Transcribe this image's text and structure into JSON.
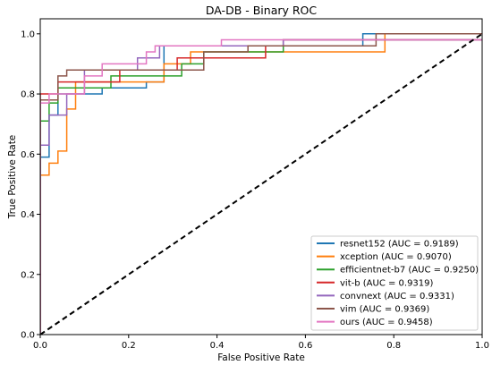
{
  "chart_data": {
    "type": "line",
    "title": "DA-DB - Binary ROC",
    "xlabel": "False Positive Rate",
    "ylabel": "True Positive Rate",
    "xlim": [
      0.0,
      1.0
    ],
    "ylim": [
      0.0,
      1.05
    ],
    "xticks": [
      "0.0",
      "0.2",
      "0.4",
      "0.6",
      "0.8",
      "1.0"
    ],
    "yticks": [
      "0.0",
      "0.2",
      "0.4",
      "0.6",
      "0.8",
      "1.0"
    ],
    "grid": false,
    "legend_position": "lower-right",
    "diagonal": {
      "from": [
        0,
        0
      ],
      "to": [
        1,
        1
      ],
      "color": "#000000",
      "style": "dashed"
    },
    "series": [
      {
        "name": "resnet152 (AUC = 0.9189)",
        "color": "#1f77b4",
        "x": [
          0,
          0,
          0.02,
          0.02,
          0.04,
          0.04,
          0.14,
          0.14,
          0.24,
          0.24,
          0.28,
          0.28,
          0.73,
          0.73,
          1.0
        ],
        "y": [
          0,
          0.59,
          0.59,
          0.73,
          0.73,
          0.8,
          0.8,
          0.82,
          0.82,
          0.84,
          0.84,
          0.96,
          0.96,
          1.0,
          1.0
        ]
      },
      {
        "name": "xception (AUC = 0.9070)",
        "color": "#ff7f0e",
        "x": [
          0,
          0,
          0.02,
          0.02,
          0.04,
          0.04,
          0.06,
          0.06,
          0.08,
          0.08,
          0.28,
          0.28,
          0.34,
          0.34,
          0.78,
          0.78,
          1.0
        ],
        "y": [
          0,
          0.53,
          0.53,
          0.57,
          0.57,
          0.61,
          0.61,
          0.75,
          0.75,
          0.84,
          0.84,
          0.9,
          0.9,
          0.94,
          0.94,
          1.0,
          1.0
        ]
      },
      {
        "name": "efficientnet-b7 (AUC = 0.9250)",
        "color": "#2ca02c",
        "x": [
          0,
          0,
          0.02,
          0.02,
          0.04,
          0.04,
          0.16,
          0.16,
          0.32,
          0.32,
          0.37,
          0.37,
          0.55,
          0.55,
          1.0
        ],
        "y": [
          0,
          0.71,
          0.71,
          0.77,
          0.77,
          0.82,
          0.82,
          0.86,
          0.86,
          0.9,
          0.9,
          0.94,
          0.94,
          0.98,
          0.98
        ]
      },
      {
        "name": "vit-b (AUC = 0.9319)",
        "color": "#d62728",
        "x": [
          0,
          0,
          0.04,
          0.04,
          0.18,
          0.18,
          0.31,
          0.31,
          0.51,
          0.51,
          0.55,
          0.55,
          1.0
        ],
        "y": [
          0,
          0.8,
          0.8,
          0.84,
          0.84,
          0.88,
          0.88,
          0.92,
          0.92,
          0.96,
          0.96,
          0.98,
          0.98
        ]
      },
      {
        "name": "convnext (AUC = 0.9331)",
        "color": "#9467bd",
        "x": [
          0,
          0,
          0.02,
          0.02,
          0.06,
          0.06,
          0.1,
          0.1,
          0.22,
          0.22,
          0.27,
          0.27,
          0.55,
          0.55,
          1.0
        ],
        "y": [
          0,
          0.63,
          0.63,
          0.73,
          0.73,
          0.8,
          0.8,
          0.88,
          0.88,
          0.92,
          0.92,
          0.96,
          0.96,
          0.98,
          0.98
        ]
      },
      {
        "name": "vim (AUC = 0.9369)",
        "color": "#8c564b",
        "x": [
          0,
          0,
          0.04,
          0.04,
          0.06,
          0.06,
          0.37,
          0.37,
          0.47,
          0.47,
          0.76,
          0.76,
          1.0
        ],
        "y": [
          0,
          0.78,
          0.78,
          0.86,
          0.86,
          0.88,
          0.88,
          0.94,
          0.94,
          0.96,
          0.96,
          1.0,
          1.0
        ]
      },
      {
        "name": "ours (AUC = 0.9458)",
        "color": "#e377c2",
        "x": [
          0,
          0,
          0.02,
          0.02,
          0.1,
          0.1,
          0.14,
          0.14,
          0.24,
          0.24,
          0.26,
          0.26,
          0.41,
          0.41,
          0.8,
          0.8,
          1.0
        ],
        "y": [
          0,
          0.77,
          0.77,
          0.8,
          0.8,
          0.86,
          0.86,
          0.9,
          0.9,
          0.94,
          0.94,
          0.96,
          0.96,
          0.98,
          0.98,
          0.98,
          0.98
        ]
      }
    ]
  }
}
